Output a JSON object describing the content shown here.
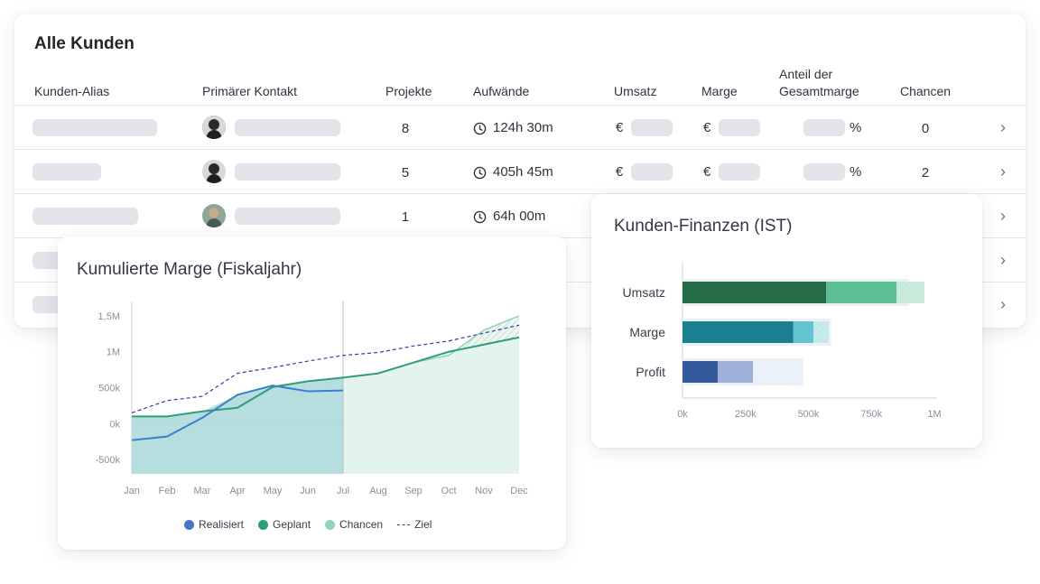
{
  "customers": {
    "title": "Alle Kunden",
    "headers": {
      "alias": "Kunden-Alias",
      "contact": "Primärer Kontakt",
      "projects": "Projekte",
      "efforts": "Aufwände",
      "revenue": "Umsatz",
      "margin": "Marge",
      "share_line1": "Anteil der",
      "share_line2": "Gesamtmarge",
      "chances": "Chancen"
    },
    "currency_symbol": "€",
    "percent_symbol": "%",
    "rows": [
      {
        "projects": "8",
        "efforts": "124h 30m",
        "chances": "0"
      },
      {
        "projects": "5",
        "efforts": "405h 45m",
        "chances": "2"
      },
      {
        "projects": "1",
        "efforts": "64h 00m"
      }
    ],
    "chevron": "›"
  },
  "margin_chart": {
    "title": "Kumulierte Marge (Fiskaljahr)",
    "legend": [
      "Realisiert",
      "Geplant",
      "Chancen",
      "Ziel"
    ]
  },
  "finance_chart": {
    "title": "Kunden-Finanzen (IST)"
  },
  "chart_data": [
    {
      "type": "line",
      "title": "Kumulierte Marge (Fiskaljahr)",
      "x": [
        "Jan",
        "Feb",
        "Mar",
        "Apr",
        "May",
        "Jun",
        "Jul",
        "Aug",
        "Sep",
        "Oct",
        "Nov",
        "Dec"
      ],
      "y_tick_labels": [
        "1,5M",
        "1M",
        "500k",
        "0k",
        "-500k"
      ],
      "ylim": [
        -700000,
        1700000
      ],
      "series": [
        {
          "name": "Realisiert",
          "color": "#3b7fd0",
          "values": [
            -230000,
            -180000,
            80000,
            400000,
            530000,
            450000,
            460000,
            null,
            null,
            null,
            null,
            null
          ]
        },
        {
          "name": "Geplant",
          "color": "#2f9e78",
          "values": [
            100000,
            100000,
            170000,
            220000,
            510000,
            590000,
            640000,
            700000,
            850000,
            1000000,
            1100000,
            1200000
          ]
        },
        {
          "name": "Chancen",
          "color": "#8fd3b8",
          "values": [
            null,
            null,
            null,
            null,
            null,
            null,
            640000,
            700000,
            850000,
            950000,
            1300000,
            1500000
          ]
        },
        {
          "name": "Ziel",
          "color": "#3c37a8",
          "values": [
            150000,
            320000,
            380000,
            700000,
            780000,
            870000,
            950000,
            990000,
            1080000,
            1150000,
            1260000,
            1370000
          ]
        }
      ],
      "legend_position": "bottom"
    },
    {
      "type": "bar",
      "title": "Kunden-Finanzen (IST)",
      "categories": [
        "Umsatz",
        "Marge",
        "Profit"
      ],
      "x_tick_labels": [
        "0k",
        "250k",
        "500k",
        "750k",
        "1M"
      ],
      "xlim": [
        0,
        1000000
      ],
      "series": [
        {
          "category": "Umsatz",
          "segments": [
            {
              "value": 570000,
              "color": "#256b45"
            },
            {
              "value": 280000,
              "color": "#5bbf93"
            },
            {
              "value": 110000,
              "color": "#a6ddc5",
              "pattern": "hatched"
            }
          ],
          "background": 900000
        },
        {
          "category": "Marge",
          "segments": [
            {
              "value": 440000,
              "color": "#1c7f8f"
            },
            {
              "value": 80000,
              "color": "#62c3d1"
            },
            {
              "value": 60000,
              "color": "#9fdbe4",
              "pattern": "hatched"
            }
          ],
          "background": 590000
        },
        {
          "category": "Profit",
          "segments": [
            {
              "value": 140000,
              "color": "#33599a"
            },
            {
              "value": 140000,
              "color": "#9fb0d6"
            }
          ],
          "background": 480000
        }
      ]
    }
  ]
}
